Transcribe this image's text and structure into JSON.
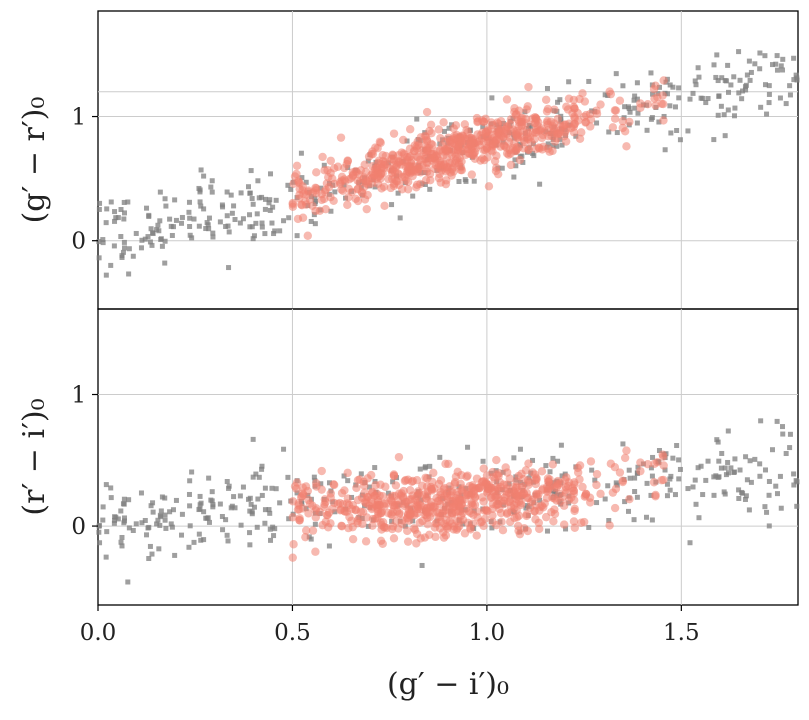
{
  "chart_data": [
    {
      "panel": "top",
      "type": "scatter",
      "xlabel": "",
      "ylabel": "(g′ − r′)₀",
      "xlim": [
        0.0,
        1.8
      ],
      "ylim": [
        -0.55,
        1.85
      ],
      "x_ticks": [],
      "y_ticks": [
        "0",
        "1"
      ],
      "y_tick_values": [
        0,
        1
      ],
      "hline": 1.2,
      "grid": true,
      "series_colors": {
        "all": "#7f7f7f",
        "selected": "#f08070"
      },
      "selected_trend": {
        "x": [
          0.5,
          0.8,
          1.0,
          1.2,
          1.45
        ],
        "y": [
          0.35,
          0.62,
          0.8,
          0.95,
          1.05
        ]
      },
      "all_trend": {
        "x": [
          0.0,
          0.25,
          0.5,
          1.0,
          1.5,
          1.8
        ],
        "y": [
          0.05,
          0.18,
          0.32,
          0.8,
          1.15,
          1.35
        ]
      }
    },
    {
      "panel": "bottom",
      "type": "scatter",
      "xlabel": "(g′ − i′)₀",
      "ylabel": "(r′ − i′)₀",
      "xlim": [
        0.0,
        1.8
      ],
      "ylim": [
        -0.6,
        1.65
      ],
      "x_ticks": [
        "0.0",
        "0.5",
        "1.0",
        "1.5"
      ],
      "x_tick_values": [
        0.0,
        0.5,
        1.0,
        1.5
      ],
      "y_ticks": [
        "0",
        "1"
      ],
      "y_tick_values": [
        0,
        1
      ],
      "grid": true,
      "series_colors": {
        "all": "#7f7f7f",
        "selected": "#f08070"
      },
      "selected_trend": {
        "x": [
          0.5,
          0.8,
          1.0,
          1.2,
          1.45
        ],
        "y": [
          0.12,
          0.15,
          0.2,
          0.25,
          0.35
        ]
      },
      "all_trend": {
        "x": [
          0.0,
          0.25,
          0.5,
          1.0,
          1.5,
          1.8
        ],
        "y": [
          0.0,
          0.06,
          0.18,
          0.22,
          0.35,
          0.45
        ]
      }
    }
  ]
}
